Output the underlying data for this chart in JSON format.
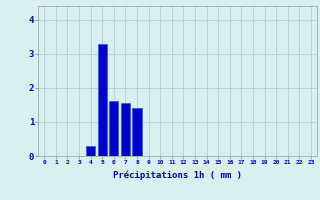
{
  "hours": [
    0,
    1,
    2,
    3,
    4,
    5,
    6,
    7,
    8,
    9,
    10,
    11,
    12,
    13,
    14,
    15,
    16,
    17,
    18,
    19,
    20,
    21,
    22,
    23
  ],
  "values": [
    0,
    0,
    0,
    0,
    0.3,
    3.3,
    1.6,
    1.55,
    1.4,
    0,
    0,
    0,
    0,
    0,
    0,
    0,
    0,
    0,
    0,
    0,
    0,
    0,
    0,
    0
  ],
  "bar_color": "#0000cc",
  "bar_edge_color": "#1a5aff",
  "background_color": "#d8f0f0",
  "grid_color": "#aacccc",
  "xlabel": "Précipitations 1h ( mm )",
  "xlabel_color": "#0000cc",
  "tick_color": "#0000cc",
  "ylim": [
    0,
    4.4
  ],
  "xlim": [
    -0.5,
    23.5
  ],
  "yticks": [
    0,
    1,
    2,
    3,
    4
  ],
  "xticks": [
    0,
    1,
    2,
    3,
    4,
    5,
    6,
    7,
    8,
    9,
    10,
    11,
    12,
    13,
    14,
    15,
    16,
    17,
    18,
    19,
    20,
    21,
    22,
    23
  ]
}
